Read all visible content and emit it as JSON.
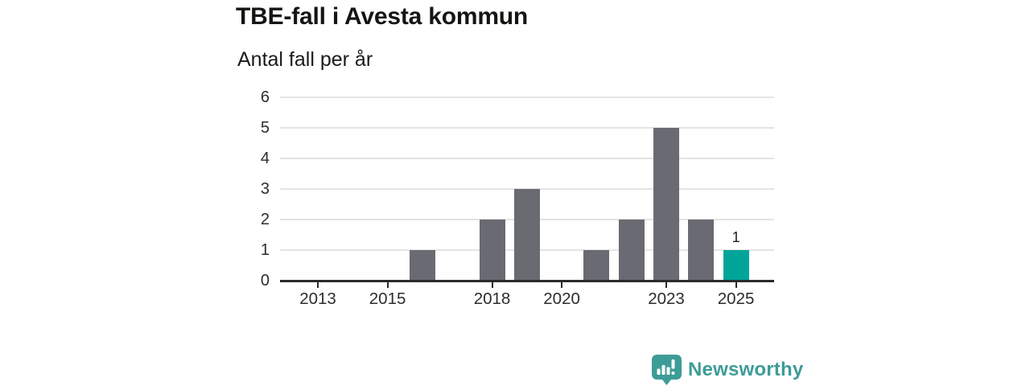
{
  "chart_data": {
    "type": "bar",
    "title": "TBE-fall i Avesta kommun",
    "subtitle": "Antal fall per år",
    "xlabel": "",
    "ylabel": "Antal fall per år",
    "categories": [
      "2013",
      "2014",
      "2015",
      "2016",
      "2017",
      "2018",
      "2019",
      "2020",
      "2021",
      "2022",
      "2023",
      "2024",
      "2025"
    ],
    "values": [
      0,
      0,
      0,
      1,
      0,
      2,
      3,
      0,
      1,
      2,
      5,
      2,
      1
    ],
    "ylim": [
      0,
      6
    ],
    "y_ticks": [
      0,
      1,
      2,
      3,
      4,
      5,
      6
    ],
    "x_tick_labels": [
      "2013",
      "2015",
      "2018",
      "2020",
      "2023",
      "2025"
    ],
    "grid": true,
    "legend_position": "none",
    "highlight": {
      "category": "2025",
      "value": 1,
      "data_label": "1"
    },
    "colors": {
      "bar": "#6a6a72",
      "highlight_bar": "#00a499",
      "gridline": "#e4e4e4",
      "axis_line": "#2b2b2b",
      "tick_label": "#2d2d2d"
    }
  },
  "footer": {
    "brand": "Newsworthy",
    "brand_color": "#3d9c96"
  }
}
